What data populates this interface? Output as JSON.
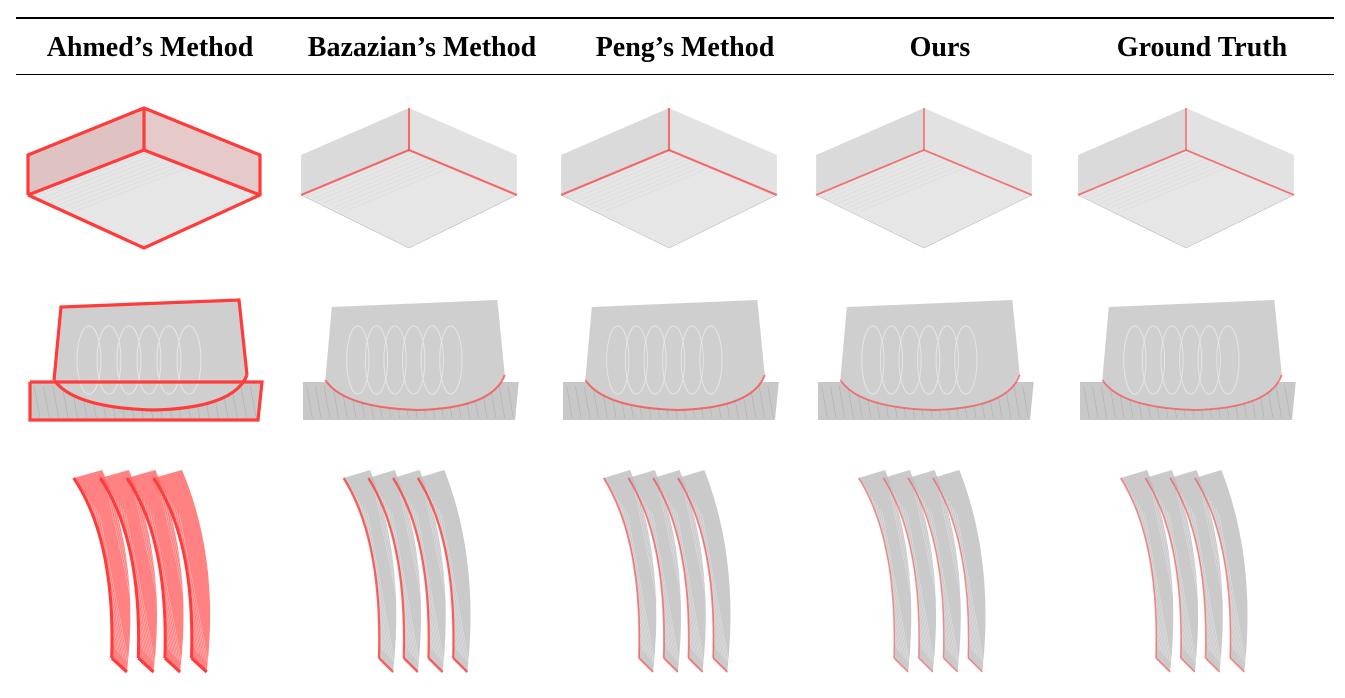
{
  "table": {
    "columns": [
      {
        "label": "Ahmed’s Method"
      },
      {
        "label": "Bazazian’s Method"
      },
      {
        "label": "Peng’s Method"
      },
      {
        "label": "Ours"
      },
      {
        "label": "Ground Truth"
      }
    ],
    "rows": [
      {
        "shape": "box-corner",
        "edge_intensity": [
          1.0,
          0.55,
          0.55,
          0.4,
          0.4
        ]
      },
      {
        "shape": "cylinder-on-base",
        "edge_intensity": [
          1.0,
          0.5,
          0.5,
          0.4,
          0.4
        ]
      },
      {
        "shape": "curved-blades",
        "edge_intensity": [
          1.0,
          0.7,
          0.45,
          0.3,
          0.35
        ]
      }
    ]
  },
  "colors": {
    "points": "#bdbdbd",
    "points_dark": "#9e9e9e",
    "edge": "#ff3b3b",
    "face_top": "#e6e6e6",
    "face_side": "#dadada",
    "rule": "#000000"
  }
}
